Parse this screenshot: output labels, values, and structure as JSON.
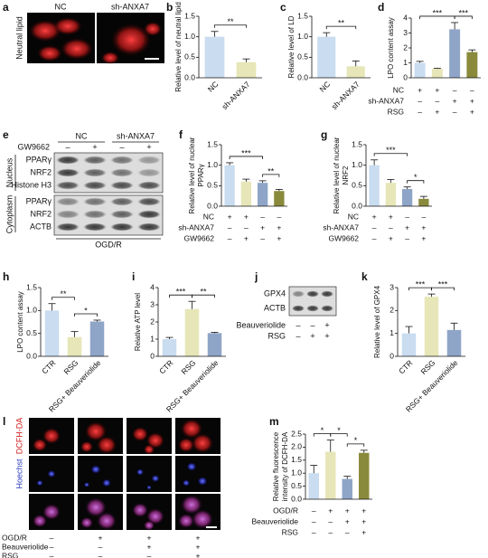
{
  "panel_labels": [
    "a",
    "b",
    "c",
    "d",
    "e",
    "f",
    "g",
    "h",
    "i",
    "j",
    "k",
    "l",
    "m"
  ],
  "panel_a": {
    "columns": [
      "NC",
      "sh-ANXA7"
    ],
    "row_label": "Neutral lipid"
  },
  "panel_e": {
    "groups": [
      "NC",
      "sh-ANXA7"
    ],
    "treatment": "GW9662",
    "treatment_marks": [
      "–",
      "+",
      "–",
      "+"
    ],
    "compartments": [
      "Nucleus",
      "Cytoplasm"
    ],
    "bands": [
      "PPARγ",
      "NRF2",
      "Histone H3",
      "PPARγ",
      "NRF2",
      "ACTB"
    ],
    "condition": "OGD/R"
  },
  "panel_j": {
    "bands": [
      "GPX4",
      "ACTB"
    ],
    "conditions": [
      {
        "label": "Beauveriolide",
        "marks": [
          "–",
          "–",
          "+"
        ]
      },
      {
        "label": "RSG",
        "marks": [
          "–",
          "+",
          "+"
        ]
      }
    ]
  },
  "panel_l": {
    "stains": [
      "DCFH-DA",
      "Hoechst"
    ],
    "conditions": [
      {
        "label": "OGD/R",
        "marks": [
          "–",
          "+",
          "+",
          "+"
        ]
      },
      {
        "label": "Beauveriolide",
        "marks": [
          "–",
          "–",
          "+",
          "+"
        ]
      },
      {
        "label": "RSG",
        "marks": [
          "–",
          "–",
          "–",
          "+"
        ]
      }
    ]
  },
  "chart_data": [
    {
      "type": "bar",
      "ylabel": [
        "Relative level of neutral lipid"
      ],
      "categories": [
        "NC",
        "sh-ANXA7"
      ],
      "values": [
        1.0,
        0.38
      ],
      "errors": [
        0.13,
        0.08
      ],
      "colors": [
        "#c9dcf0",
        "#e6e6b8"
      ],
      "ylim": [
        0,
        1.5
      ],
      "yticks": [
        {
          "value": 0,
          "label": "0.0"
        },
        {
          "value": 0.5,
          "label": "0.5"
        },
        {
          "value": 1,
          "label": "1.0"
        },
        {
          "value": 1.5,
          "label": "1.5"
        }
      ],
      "significance": [
        {
          "from": 0,
          "to": 1,
          "label": "**"
        }
      ]
    },
    {
      "type": "bar",
      "ylabel": [
        "Relative level of LD"
      ],
      "categories": [
        "NC",
        "sh-ANXA7"
      ],
      "values": [
        1.0,
        0.28
      ],
      "errors": [
        0.1,
        0.13
      ],
      "colors": [
        "#c9dcf0",
        "#e6e6b8"
      ],
      "ylim": [
        0,
        1.5
      ],
      "yticks": [
        {
          "value": 0,
          "label": "0.0"
        },
        {
          "value": 0.5,
          "label": "0.5"
        },
        {
          "value": 1,
          "label": "1.0"
        },
        {
          "value": 1.5,
          "label": "1.5"
        }
      ],
      "significance": [
        {
          "from": 0,
          "to": 1,
          "label": "**"
        }
      ]
    },
    {
      "type": "bar",
      "ylabel": [
        "LPO content assay"
      ],
      "values": [
        1.0,
        0.6,
        3.25,
        1.72
      ],
      "errors": [
        0.1,
        0.04,
        0.45,
        0.15
      ],
      "colors": [
        "#c9dcf0",
        "#e6e6b8",
        "#8fa5c8",
        "#8a8a3c"
      ],
      "ylim": [
        0,
        4
      ],
      "yticks": [
        0,
        1,
        2,
        3,
        4
      ],
      "significance": [
        {
          "from": 0,
          "to": 2,
          "label": "***"
        },
        {
          "from": 2,
          "to": 3,
          "label": "***"
        }
      ],
      "conditions": [
        {
          "label": "NC",
          "marks": [
            "+",
            "+",
            "–",
            "–"
          ]
        },
        {
          "label": "sh-ANXA7",
          "marks": [
            "–",
            "–",
            "+",
            "+"
          ]
        },
        {
          "label": "RSG",
          "marks": [
            "–",
            "+",
            "–",
            "+"
          ]
        }
      ]
    },
    {
      "type": "bar",
      "ylabel": [
        "Relative level of nuclear",
        "PPARγ"
      ],
      "values": [
        1.0,
        0.6,
        0.57,
        0.37
      ],
      "errors": [
        0.06,
        0.06,
        0.05,
        0.04
      ],
      "colors": [
        "#c9dcf0",
        "#e6e6b8",
        "#8fa5c8",
        "#8a8a3c"
      ],
      "ylim": [
        0,
        1.5
      ],
      "yticks": [
        {
          "value": 0,
          "label": "0.0"
        },
        {
          "value": 0.5,
          "label": "0.5"
        },
        {
          "value": 1,
          "label": "1.0"
        },
        {
          "value": 1.5,
          "label": "1.5"
        }
      ],
      "significance": [
        {
          "from": 0,
          "to": 2,
          "label": "***"
        },
        {
          "from": 2,
          "to": 3,
          "label": "**"
        }
      ],
      "conditions": [
        {
          "label": "NC",
          "marks": [
            "+",
            "+",
            "–",
            "–"
          ]
        },
        {
          "label": "sh-ANXA7",
          "marks": [
            "–",
            "–",
            "+",
            "+"
          ]
        },
        {
          "label": "GW9662",
          "marks": [
            "–",
            "+",
            "–",
            "+"
          ]
        }
      ]
    },
    {
      "type": "bar",
      "ylabel": [
        "Relative level of nuclear",
        "NRF2"
      ],
      "values": [
        1.0,
        0.57,
        0.42,
        0.18
      ],
      "errors": [
        0.13,
        0.08,
        0.05,
        0.06
      ],
      "colors": [
        "#c9dcf0",
        "#e6e6b8",
        "#8fa5c8",
        "#8a8a3c"
      ],
      "ylim": [
        0,
        1.5
      ],
      "yticks": [
        {
          "value": 0,
          "label": "0.0"
        },
        {
          "value": 0.5,
          "label": "0.5"
        },
        {
          "value": 1,
          "label": "1.0"
        },
        {
          "value": 1.5,
          "label": "1.5"
        }
      ],
      "significance": [
        {
          "from": 0,
          "to": 2,
          "label": "***"
        },
        {
          "from": 2,
          "to": 3,
          "label": "*"
        }
      ],
      "conditions": [
        {
          "label": "NC",
          "marks": [
            "+",
            "+",
            "–",
            "–"
          ]
        },
        {
          "label": "sh-ANXA7",
          "marks": [
            "–",
            "–",
            "+",
            "+"
          ]
        },
        {
          "label": "GW9662",
          "marks": [
            "–",
            "+",
            "–",
            "+"
          ]
        }
      ]
    },
    {
      "type": "bar",
      "ylabel": [
        "LPO content assay"
      ],
      "categories": [
        "CTR",
        "RSG",
        "RSG+ Beauveriolide"
      ],
      "values": [
        1.0,
        0.42,
        0.76
      ],
      "errors": [
        0.15,
        0.12,
        0.03
      ],
      "colors": [
        "#c9dcf0",
        "#e6e6b8",
        "#8fa5c8"
      ],
      "ylim": [
        0,
        1.5
      ],
      "yticks": [
        {
          "value": 0,
          "label": "0.0"
        },
        {
          "value": 0.5,
          "label": "0.5"
        },
        {
          "value": 1,
          "label": "1.0"
        },
        {
          "value": 1.5,
          "label": "1.5"
        }
      ],
      "significance": [
        {
          "from": 0,
          "to": 1,
          "label": "**"
        },
        {
          "from": 1,
          "to": 2,
          "label": "*"
        }
      ]
    },
    {
      "type": "bar",
      "ylabel": [
        "Relative ATP level"
      ],
      "categories": [
        "CTR",
        "RSG",
        "RSG+ Beauveriolide"
      ],
      "values": [
        1.0,
        2.75,
        1.35
      ],
      "errors": [
        0.1,
        0.45,
        0.05
      ],
      "colors": [
        "#c9dcf0",
        "#e6e6b8",
        "#8fa5c8"
      ],
      "ylim": [
        0,
        4
      ],
      "yticks": [
        0,
        1,
        2,
        3,
        4
      ],
      "significance": [
        {
          "from": 0,
          "to": 1,
          "label": "***"
        },
        {
          "from": 1,
          "to": 2,
          "label": "**"
        }
      ]
    },
    {
      "type": "bar",
      "ylabel": [
        "Relative level of GPX4"
      ],
      "categories": [
        "CTR",
        "RSG",
        "RSG+ Beauveriolide"
      ],
      "values": [
        1.0,
        2.6,
        1.15
      ],
      "errors": [
        0.3,
        0.12,
        0.3
      ],
      "colors": [
        "#c9dcf0",
        "#e6e6b8",
        "#8fa5c8"
      ],
      "ylim": [
        0,
        3
      ],
      "yticks": [
        0,
        1,
        2,
        3
      ],
      "significance": [
        {
          "from": 0,
          "to": 1,
          "label": "***"
        },
        {
          "from": 1,
          "to": 2,
          "label": "***"
        }
      ]
    },
    {
      "type": "bar",
      "ylabel": [
        "Relative fluorescence",
        "intensity of DCFH-DA"
      ],
      "values": [
        1.0,
        1.82,
        0.78,
        1.78
      ],
      "errors": [
        0.3,
        0.45,
        0.1,
        0.1
      ],
      "colors": [
        "#c9dcf0",
        "#e6e6b8",
        "#8fa5c8",
        "#8a8a3c"
      ],
      "ylim": [
        0,
        2.5
      ],
      "yticks": [
        {
          "value": 0,
          "label": "0.0"
        },
        {
          "value": 0.5,
          "label": "0.5"
        },
        {
          "value": 1,
          "label": "1.0"
        },
        {
          "value": 1.5,
          "label": "1.5"
        },
        {
          "value": 2,
          "label": "2.0"
        },
        {
          "value": 2.5,
          "label": "2.5"
        }
      ],
      "significance": [
        {
          "from": 0,
          "to": 1,
          "label": "*"
        },
        {
          "from": 1,
          "to": 2,
          "label": "*"
        },
        {
          "from": 2,
          "to": 3,
          "label": "*"
        }
      ],
      "conditions": [
        {
          "label": "OGD/R",
          "marks": [
            "–",
            "+",
            "+",
            "+"
          ]
        },
        {
          "label": "Beauveriolide",
          "marks": [
            "–",
            "–",
            "+",
            "+"
          ]
        },
        {
          "label": "RSG",
          "marks": [
            "–",
            "–",
            "–",
            "+"
          ]
        }
      ]
    }
  ]
}
